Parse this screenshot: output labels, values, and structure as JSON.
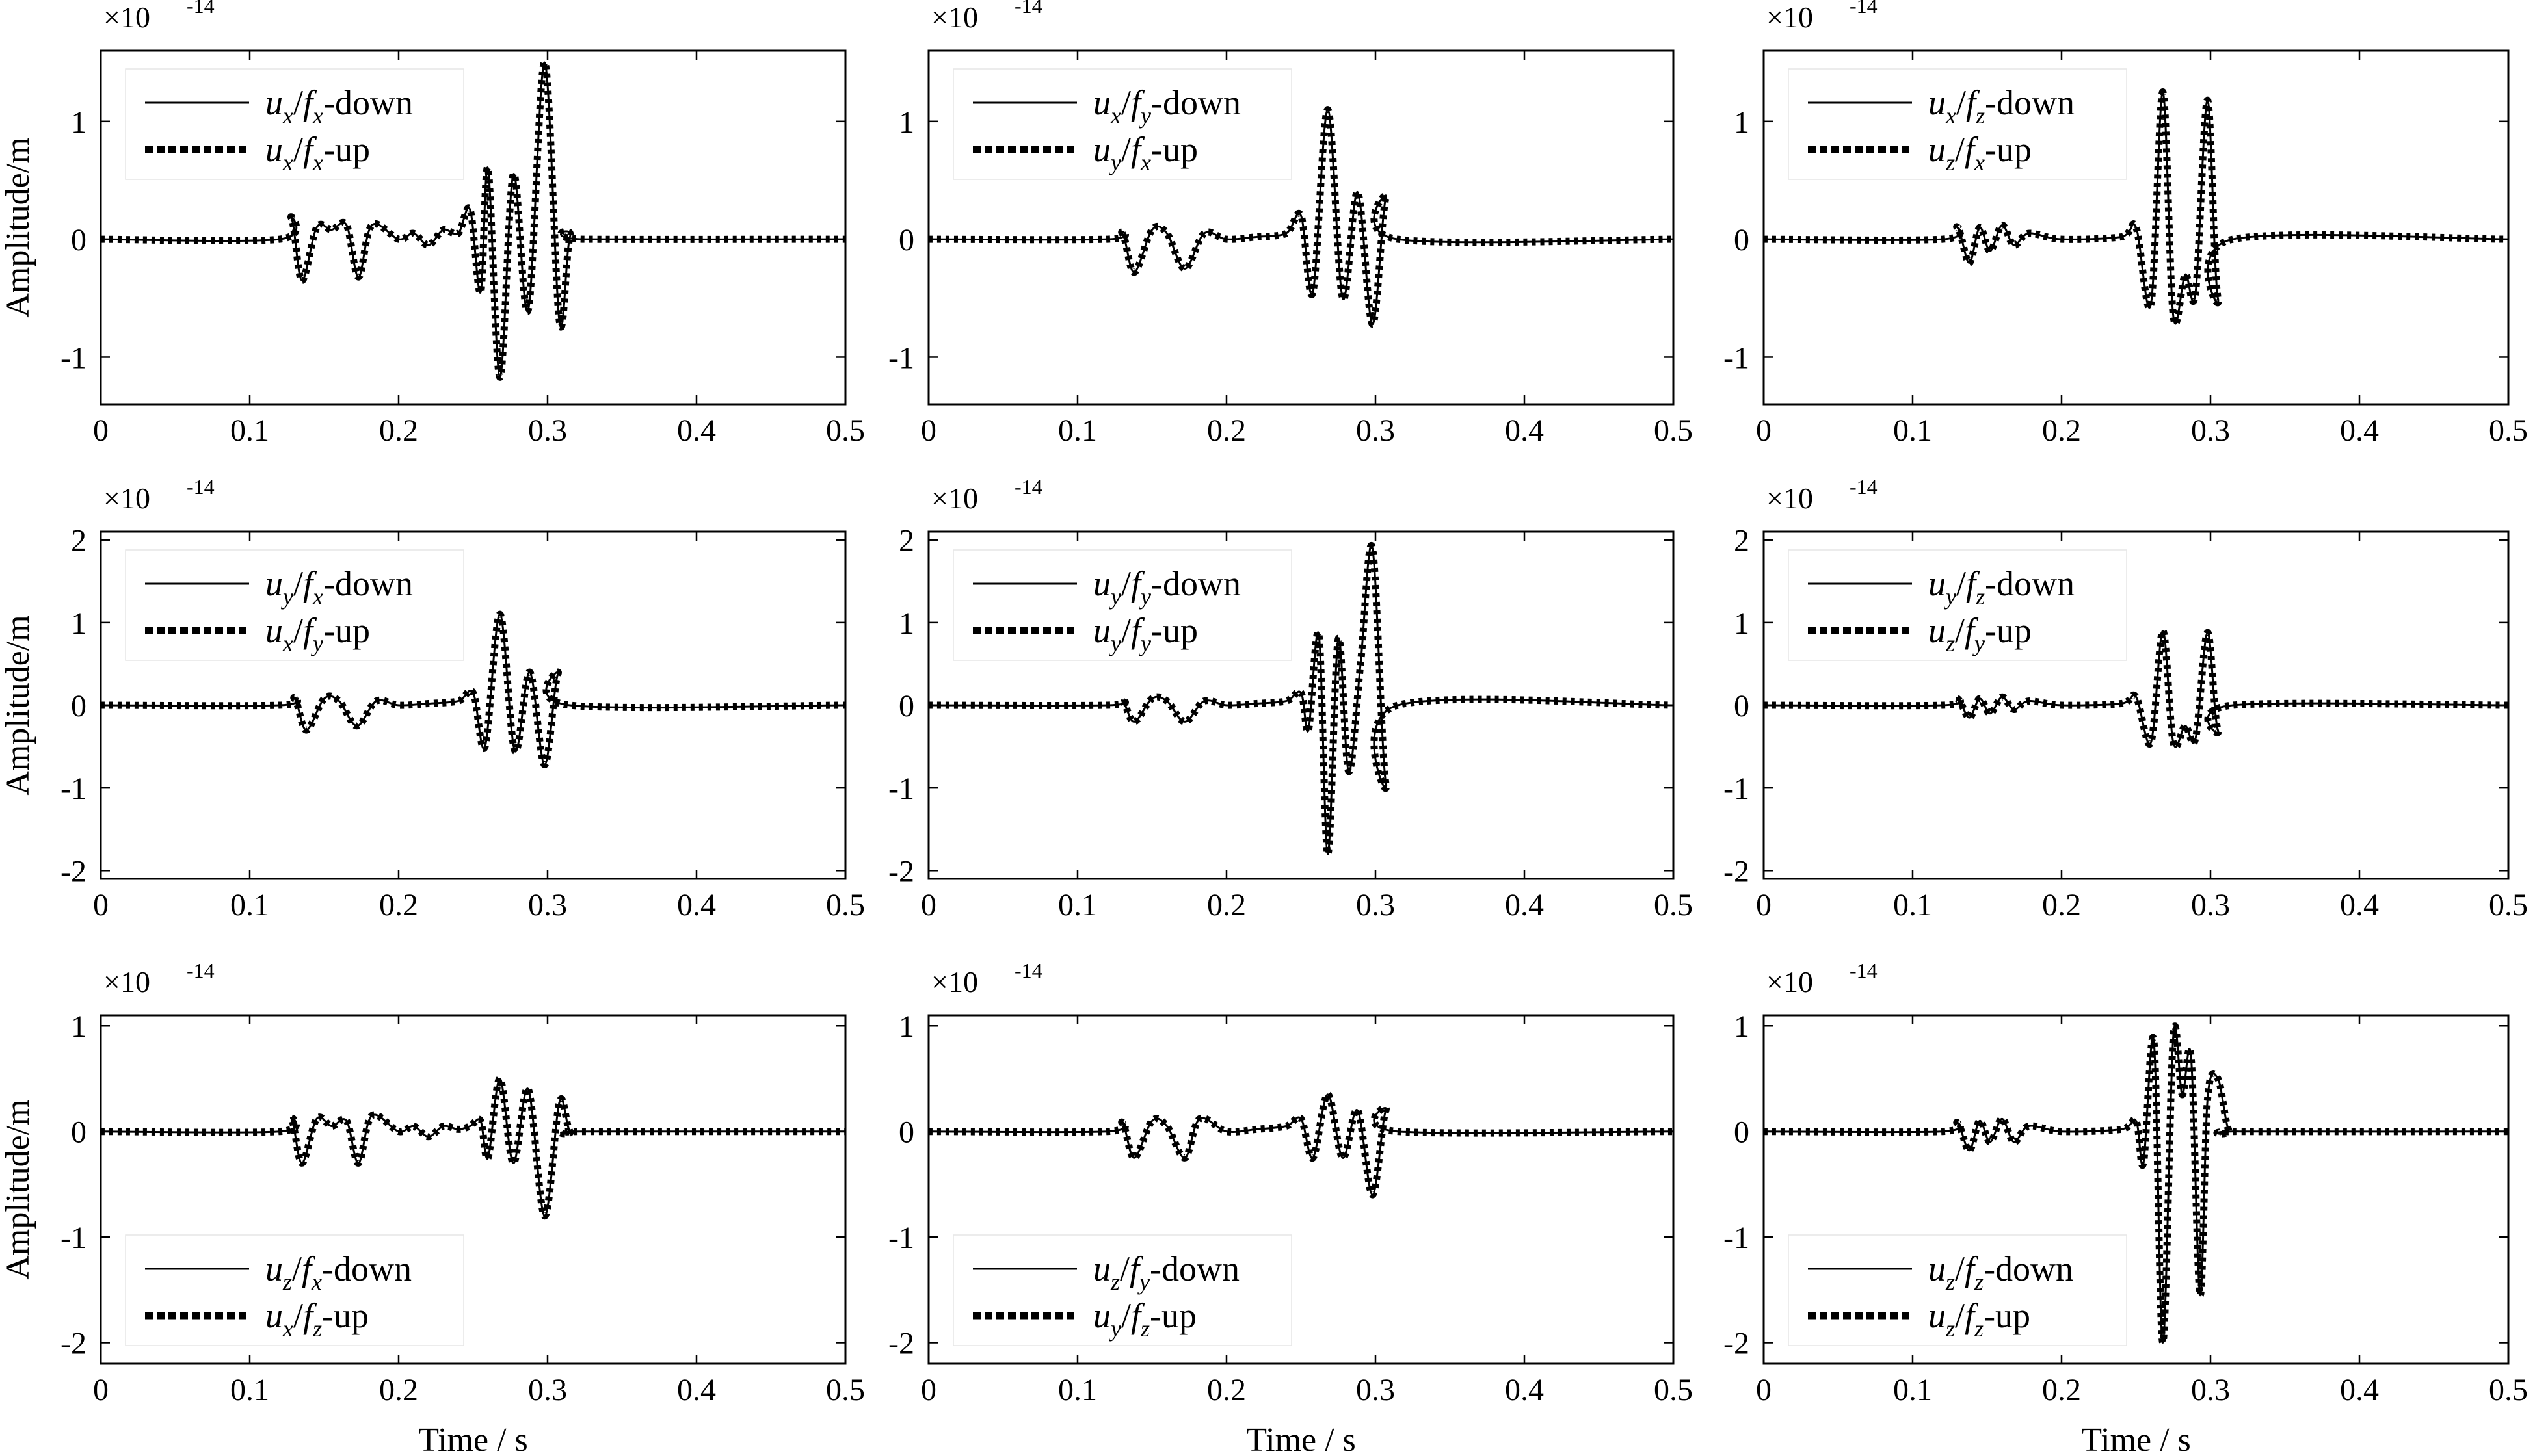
{
  "figure": {
    "xlabel": "Time / s",
    "ylabel": "Amplitude/m",
    "multiplier": {
      "base": "×10",
      "exp": "-14"
    }
  },
  "chart_data": [
    {
      "type": "line",
      "row": 0,
      "col": 0,
      "xlim": [
        0,
        0.5
      ],
      "ylim": [
        -1.4,
        1.6
      ],
      "yticks": [
        -1,
        0,
        1
      ],
      "xticks": [
        0,
        0.1,
        0.2,
        0.3,
        0.4,
        0.5
      ],
      "legend": "top-left",
      "series": [
        {
          "name": "u_x/f_x-down",
          "style": "solid"
        },
        {
          "name": "u_x/f_x-up",
          "style": "dotted"
        }
      ],
      "legend_parts": [
        {
          "a": "u",
          "as": "x",
          "b": "f",
          "bs": "x",
          "suffix": "-down"
        },
        {
          "a": "u",
          "as": "x",
          "b": "f",
          "bs": "x",
          "suffix": "-up"
        }
      ],
      "x": [
        0,
        0.12,
        0.128,
        0.135,
        0.145,
        0.155,
        0.165,
        0.173,
        0.182,
        0.2,
        0.21,
        0.22,
        0.23,
        0.24,
        0.248,
        0.255,
        0.26,
        0.268,
        0.277,
        0.287,
        0.298,
        0.308,
        0.315,
        0.325,
        0.5
      ],
      "y": [
        0,
        0,
        0.18,
        -0.35,
        0.1,
        0.08,
        0.12,
        -0.32,
        0.12,
        0,
        0.05,
        -0.05,
        0.08,
        0.05,
        0.25,
        -0.45,
        0.6,
        -1.17,
        0.55,
        -0.6,
        1.5,
        -0.7,
        0.02,
        0,
        0
      ]
    },
    {
      "type": "line",
      "row": 0,
      "col": 1,
      "xlim": [
        0,
        0.5
      ],
      "ylim": [
        -1.4,
        1.6
      ],
      "yticks": [
        -1,
        0,
        1
      ],
      "xticks": [
        0,
        0.1,
        0.2,
        0.3,
        0.4,
        0.5
      ],
      "legend": "top-left",
      "series": [
        {
          "name": "u_x/f_y-down",
          "style": "solid"
        },
        {
          "name": "u_y/f_x-up",
          "style": "dotted"
        }
      ],
      "legend_parts": [
        {
          "a": "u",
          "as": "x",
          "b": "f",
          "bs": "y",
          "suffix": "-down"
        },
        {
          "a": "u",
          "as": "y",
          "b": "f",
          "bs": "x",
          "suffix": "-up"
        }
      ],
      "x": [
        0,
        0.12,
        0.13,
        0.138,
        0.15,
        0.16,
        0.172,
        0.185,
        0.2,
        0.22,
        0.24,
        0.25,
        0.258,
        0.268,
        0.278,
        0.288,
        0.298,
        0.307,
        0.315,
        0.5
      ],
      "y": [
        0,
        0,
        0.05,
        -0.28,
        0.08,
        0.05,
        -0.25,
        0.05,
        0,
        0.02,
        0.05,
        0.2,
        -0.45,
        1.1,
        -0.5,
        0.4,
        -0.72,
        0.35,
        0,
        0
      ]
    },
    {
      "type": "line",
      "row": 0,
      "col": 2,
      "xlim": [
        0,
        0.5
      ],
      "ylim": [
        -1.4,
        1.6
      ],
      "yticks": [
        -1,
        0,
        1
      ],
      "xticks": [
        0,
        0.1,
        0.2,
        0.3,
        0.4,
        0.5
      ],
      "legend": "top-left",
      "series": [
        {
          "name": "u_x/f_z-down",
          "style": "solid"
        },
        {
          "name": "u_z/f_x-up",
          "style": "dotted"
        }
      ],
      "legend_parts": [
        {
          "a": "u",
          "as": "x",
          "b": "f",
          "bs": "z",
          "suffix": "-down"
        },
        {
          "a": "u",
          "as": "z",
          "b": "f",
          "bs": "x",
          "suffix": "-up"
        }
      ],
      "x": [
        0,
        0.12,
        0.13,
        0.138,
        0.145,
        0.152,
        0.16,
        0.168,
        0.178,
        0.2,
        0.24,
        0.25,
        0.26,
        0.268,
        0.275,
        0.283,
        0.29,
        0.298,
        0.305,
        0.315,
        0.5
      ],
      "y": [
        0,
        0,
        0.1,
        -0.2,
        0.1,
        -0.1,
        0.12,
        -0.05,
        0.05,
        0,
        0.02,
        0.1,
        -0.55,
        1.25,
        -0.65,
        -0.3,
        -0.45,
        1.18,
        -0.5,
        0,
        0
      ]
    },
    {
      "type": "line",
      "row": 1,
      "col": 0,
      "xlim": [
        0,
        0.5
      ],
      "ylim": [
        -2.1,
        2.1
      ],
      "yticks": [
        -2,
        -1,
        0,
        1,
        2
      ],
      "xticks": [
        0,
        0.1,
        0.2,
        0.3,
        0.4,
        0.5
      ],
      "legend": "top-left",
      "series": [
        {
          "name": "u_y/f_x-down",
          "style": "solid"
        },
        {
          "name": "u_x/f_y-up",
          "style": "dotted"
        }
      ],
      "legend_parts": [
        {
          "a": "u",
          "as": "y",
          "b": "f",
          "bs": "x",
          "suffix": "-down"
        },
        {
          "a": "u",
          "as": "x",
          "b": "f",
          "bs": "y",
          "suffix": "-up"
        }
      ],
      "x": [
        0,
        0.12,
        0.13,
        0.138,
        0.15,
        0.16,
        0.172,
        0.185,
        0.2,
        0.22,
        0.24,
        0.25,
        0.258,
        0.268,
        0.278,
        0.288,
        0.298,
        0.307,
        0.315,
        0.5
      ],
      "y": [
        0,
        0,
        0.08,
        -0.3,
        0.08,
        0.05,
        -0.25,
        0.05,
        0,
        0.02,
        0.05,
        0.15,
        -0.5,
        1.1,
        -0.55,
        0.4,
        -0.72,
        0.38,
        0,
        0
      ]
    },
    {
      "type": "line",
      "row": 1,
      "col": 1,
      "xlim": [
        0,
        0.5
      ],
      "ylim": [
        -2.1,
        2.1
      ],
      "yticks": [
        -2,
        -1,
        0,
        1,
        2
      ],
      "xticks": [
        0,
        0.1,
        0.2,
        0.3,
        0.4,
        0.5
      ],
      "legend": "top-left",
      "series": [
        {
          "name": "u_y/f_y-down",
          "style": "solid"
        },
        {
          "name": "u_y/f_y-up",
          "style": "dotted"
        }
      ],
      "legend_parts": [
        {
          "a": "u",
          "as": "y",
          "b": "f",
          "bs": "y",
          "suffix": "-down"
        },
        {
          "a": "u",
          "as": "y",
          "b": "f",
          "bs": "y",
          "suffix": "-up"
        }
      ],
      "x": [
        0,
        0.12,
        0.13,
        0.138,
        0.15,
        0.16,
        0.172,
        0.185,
        0.2,
        0.22,
        0.24,
        0.25,
        0.255,
        0.262,
        0.268,
        0.275,
        0.282,
        0.29,
        0.298,
        0.307,
        0.315,
        0.5
      ],
      "y": [
        0,
        0,
        0.05,
        -0.2,
        0.08,
        0.05,
        -0.2,
        0.05,
        0,
        0.02,
        0.05,
        0.15,
        -0.3,
        0.85,
        -1.8,
        0.8,
        -0.8,
        0.5,
        1.9,
        -0.95,
        0,
        0
      ]
    },
    {
      "type": "line",
      "row": 1,
      "col": 2,
      "xlim": [
        0,
        0.5
      ],
      "ylim": [
        -2.1,
        2.1
      ],
      "yticks": [
        -2,
        -1,
        0,
        1,
        2
      ],
      "xticks": [
        0,
        0.1,
        0.2,
        0.3,
        0.4,
        0.5
      ],
      "legend": "top-left",
      "series": [
        {
          "name": "u_y/f_z-down",
          "style": "solid"
        },
        {
          "name": "u_z/f_y-up",
          "style": "dotted"
        }
      ],
      "legend_parts": [
        {
          "a": "u",
          "as": "y",
          "b": "f",
          "bs": "z",
          "suffix": "-down"
        },
        {
          "a": "u",
          "as": "z",
          "b": "f",
          "bs": "y",
          "suffix": "-up"
        }
      ],
      "x": [
        0,
        0.12,
        0.13,
        0.138,
        0.145,
        0.152,
        0.16,
        0.168,
        0.178,
        0.2,
        0.24,
        0.25,
        0.26,
        0.268,
        0.275,
        0.283,
        0.29,
        0.298,
        0.305,
        0.315,
        0.5
      ],
      "y": [
        0,
        0,
        0.08,
        -0.15,
        0.08,
        -0.1,
        0.1,
        -0.05,
        0.05,
        0,
        0.02,
        0.1,
        -0.45,
        0.9,
        -0.45,
        -0.25,
        -0.4,
        0.88,
        -0.3,
        0,
        0
      ]
    },
    {
      "type": "line",
      "row": 2,
      "col": 0,
      "xlim": [
        0,
        0.5
      ],
      "ylim": [
        -2.2,
        1.1
      ],
      "yticks": [
        -2,
        -1,
        0,
        1
      ],
      "xticks": [
        0,
        0.1,
        0.2,
        0.3,
        0.4,
        0.5
      ],
      "legend": "bottom-left",
      "series": [
        {
          "name": "u_z/f_x-down",
          "style": "solid"
        },
        {
          "name": "u_x/f_z-up",
          "style": "dotted"
        }
      ],
      "legend_parts": [
        {
          "a": "u",
          "as": "z",
          "b": "f",
          "bs": "x",
          "suffix": "-down"
        },
        {
          "a": "u",
          "as": "x",
          "b": "f",
          "bs": "z",
          "suffix": "-up"
        }
      ],
      "x": [
        0,
        0.12,
        0.128,
        0.135,
        0.145,
        0.155,
        0.165,
        0.173,
        0.182,
        0.2,
        0.21,
        0.22,
        0.23,
        0.24,
        0.248,
        0.255,
        0.26,
        0.268,
        0.277,
        0.287,
        0.298,
        0.308,
        0.315,
        0.325,
        0.5
      ],
      "y": [
        0,
        0,
        0.12,
        -0.3,
        0.12,
        0.05,
        0.1,
        -0.3,
        0.15,
        0,
        0.05,
        -0.05,
        0.05,
        0.02,
        0.05,
        0.1,
        -0.25,
        0.5,
        -0.3,
        0.4,
        -0.8,
        0.28,
        0,
        0,
        0
      ]
    },
    {
      "type": "line",
      "row": 2,
      "col": 1,
      "xlim": [
        0,
        0.5
      ],
      "ylim": [
        -2.2,
        1.1
      ],
      "yticks": [
        -2,
        -1,
        0,
        1
      ],
      "xticks": [
        0,
        0.1,
        0.2,
        0.3,
        0.4,
        0.5
      ],
      "legend": "bottom-left",
      "series": [
        {
          "name": "u_z/f_y-down",
          "style": "solid"
        },
        {
          "name": "u_y/f_z-up",
          "style": "dotted"
        }
      ],
      "legend_parts": [
        {
          "a": "u",
          "as": "z",
          "b": "f",
          "bs": "y",
          "suffix": "-down"
        },
        {
          "a": "u",
          "as": "y",
          "b": "f",
          "bs": "z",
          "suffix": "-up"
        }
      ],
      "x": [
        0,
        0.12,
        0.13,
        0.138,
        0.15,
        0.16,
        0.172,
        0.182,
        0.2,
        0.22,
        0.24,
        0.25,
        0.258,
        0.268,
        0.278,
        0.288,
        0.298,
        0.307,
        0.315,
        0.5
      ],
      "y": [
        0,
        0,
        0.08,
        -0.25,
        0.1,
        0.05,
        -0.25,
        0.12,
        0,
        0.02,
        0.05,
        0.12,
        -0.25,
        0.35,
        -0.25,
        0.2,
        -0.6,
        0.2,
        0,
        0
      ]
    },
    {
      "type": "line",
      "row": 2,
      "col": 2,
      "xlim": [
        0,
        0.5
      ],
      "ylim": [
        -2.2,
        1.1
      ],
      "yticks": [
        -2,
        -1,
        0,
        1
      ],
      "xticks": [
        0,
        0.1,
        0.2,
        0.3,
        0.4,
        0.5
      ],
      "legend": "bottom-left",
      "series": [
        {
          "name": "u_z/f_z-down",
          "style": "solid"
        },
        {
          "name": "u_z/f_z-up",
          "style": "dotted"
        }
      ],
      "legend_parts": [
        {
          "a": "u",
          "as": "z",
          "b": "f",
          "bs": "z",
          "suffix": "-down"
        },
        {
          "a": "u",
          "as": "z",
          "b": "f",
          "bs": "z",
          "suffix": "-up"
        }
      ],
      "x": [
        0,
        0.12,
        0.13,
        0.138,
        0.145,
        0.152,
        0.16,
        0.168,
        0.178,
        0.2,
        0.24,
        0.25,
        0.255,
        0.262,
        0.268,
        0.275,
        0.281,
        0.287,
        0.293,
        0.298,
        0.305,
        0.312,
        0.32,
        0.5
      ],
      "y": [
        0,
        0,
        0.08,
        -0.18,
        0.1,
        -0.1,
        0.12,
        -0.1,
        0.05,
        0,
        0.02,
        0.1,
        -0.3,
        0.85,
        -2.0,
        0.9,
        0.35,
        0.7,
        -1.55,
        0.3,
        0.5,
        0.02,
        0,
        0
      ]
    }
  ]
}
